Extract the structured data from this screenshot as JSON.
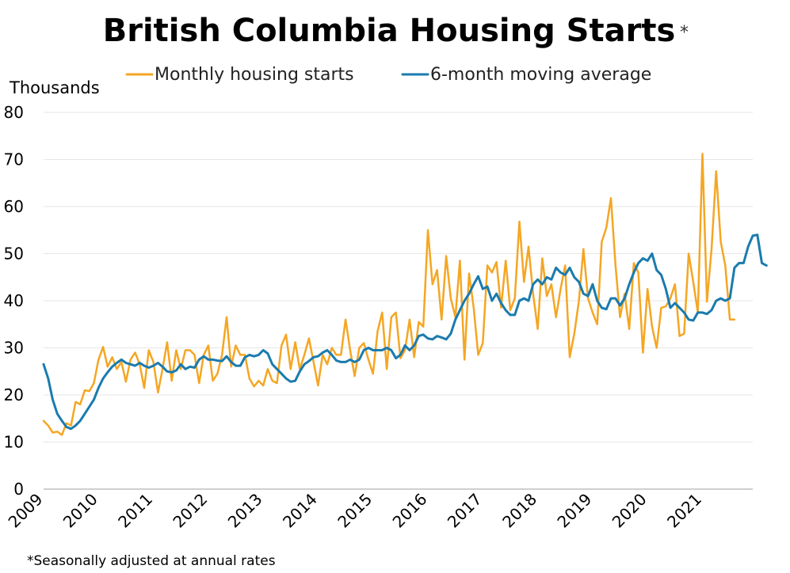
{
  "chart_data": {
    "type": "line",
    "title": "British Columbia Housing Starts",
    "title_mark": "*",
    "ylabel": "Thousands",
    "xlabel": "",
    "note": "*Seasonally adjusted at annual rates",
    "ylim": [
      0,
      80
    ],
    "yticks": [
      0,
      10,
      20,
      30,
      40,
      50,
      60,
      70,
      80
    ],
    "xlim": [
      2009.0,
      2021.917
    ],
    "xticks": [
      "2009",
      "2010",
      "2011",
      "2012",
      "2013",
      "2014",
      "2015",
      "2016",
      "2017",
      "2018",
      "2019",
      "2020",
      "2021"
    ],
    "grid": true,
    "legend_position": "top",
    "x_start": "2009-01",
    "x_frequency": "monthly",
    "series": [
      {
        "name": "Monthly housing starts",
        "color": "#F5A623",
        "values": [
          14.5,
          13.5,
          12,
          12.2,
          11.5,
          14,
          13.5,
          18.5,
          18,
          21,
          20.8,
          22.5,
          27.5,
          30.2,
          26,
          28,
          25.5,
          27,
          22.8,
          27.5,
          29,
          26.5,
          21.5,
          29.5,
          27,
          20.5,
          25.5,
          31.2,
          23,
          29.5,
          25.5,
          29.5,
          29.5,
          28.5,
          22.5,
          28.5,
          30.5,
          23,
          24.5,
          28.5,
          36.5,
          26,
          30.5,
          28.5,
          28.5,
          23.5,
          21.8,
          23,
          22,
          25.5,
          23,
          22.5,
          30.5,
          32.8,
          25.5,
          31.2,
          25.5,
          28.5,
          32,
          27,
          22,
          28.5,
          26.5,
          30,
          28.5,
          28.5,
          36,
          29.5,
          24,
          30,
          31,
          27.5,
          24.5,
          33.5,
          37.5,
          25.5,
          36.5,
          37.5,
          27.8,
          29.5,
          36,
          28,
          35.5,
          34.5,
          55,
          43.5,
          46.5,
          36,
          49.5,
          40.5,
          36.5,
          48.5,
          27.5,
          45.8,
          38.5,
          28.5,
          31,
          47.5,
          46,
          48.2,
          38.5,
          48.5,
          38,
          40.5,
          56.8,
          44,
          51.5,
          41.5,
          34,
          49,
          41,
          43.5,
          36.5,
          42.5,
          47.5,
          28,
          33,
          40,
          51,
          40.5,
          37.5,
          35,
          52.5,
          55.5,
          61.8,
          47.5,
          36.5,
          41.5,
          34,
          48,
          46,
          29,
          42.5,
          34.5,
          30,
          38.5,
          38.8,
          40.5,
          43.5,
          32.5,
          33,
          50,
          44,
          37.5,
          71.2,
          39.8,
          51,
          67.5,
          52.5,
          47.5,
          36,
          36
        ]
      },
      {
        "name": "6-month moving average",
        "color": "#1A7BAE",
        "values": [
          26.5,
          23.5,
          19,
          16,
          14.5,
          13.2,
          12.8,
          13.5,
          14.5,
          16,
          17.5,
          19,
          21.5,
          23.5,
          24.8,
          26,
          26.8,
          27.5,
          26.8,
          26.5,
          26.2,
          26.8,
          26.2,
          25.8,
          26.2,
          26.8,
          26,
          25,
          24.8,
          25.2,
          26.5,
          25.5,
          26,
          25.8,
          27.5,
          28.2,
          27.5,
          27.5,
          27.3,
          27.2,
          28.2,
          27,
          26.2,
          26.2,
          28,
          28.5,
          28.2,
          28.5,
          29.5,
          28.8,
          26.5,
          25.5,
          24.5,
          23.5,
          22.8,
          23,
          25,
          26.5,
          27.2,
          28,
          28.2,
          29,
          29.5,
          28.5,
          27.3,
          27,
          27,
          27.5,
          27,
          27.5,
          29.5,
          30,
          29.5,
          29.5,
          29.5,
          30,
          29.5,
          27.8,
          28.5,
          30.5,
          29.5,
          30.5,
          32.5,
          32.8,
          32,
          31.8,
          32.5,
          32.2,
          31.8,
          33,
          36,
          38,
          40,
          41.5,
          43.5,
          45.2,
          42.5,
          43,
          40,
          41.5,
          39.5,
          38,
          37,
          37,
          40,
          40.5,
          40,
          43.5,
          44.5,
          43.5,
          45,
          44.5,
          47,
          46,
          45.5,
          47,
          45,
          44,
          41.5,
          41,
          43.5,
          40,
          38.5,
          38.2,
          40.5,
          40.5,
          39,
          40.5,
          43.5,
          46,
          48,
          49,
          48.5,
          50,
          46.5,
          45.5,
          42.5,
          38.5,
          39.5,
          38.5,
          37.5,
          36,
          35.8,
          37.5,
          37.5,
          37.2,
          38,
          40,
          40.5,
          40,
          40.5,
          47,
          48,
          48,
          51.5,
          53.8,
          54,
          48,
          47.5
        ]
      }
    ]
  }
}
